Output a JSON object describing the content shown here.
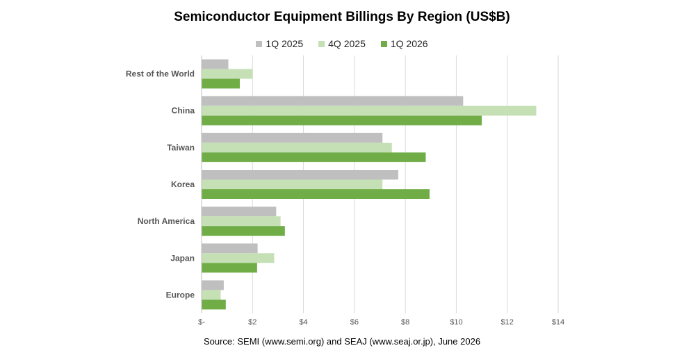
{
  "chart_data": {
    "type": "bar",
    "orientation": "horizontal",
    "title": "Semiconductor Equipment Billings By Region (US$B)",
    "categories": [
      "Rest of the World",
      "China",
      "Taiwan",
      "Korea",
      "North America",
      "Japan",
      "Europe"
    ],
    "series": [
      {
        "name": "1Q 2025",
        "color": "#bfbfbf",
        "values": [
          1.05,
          10.27,
          7.1,
          7.72,
          2.93,
          2.2,
          0.87
        ]
      },
      {
        "name": "4Q 2025",
        "color": "#c5e0b4",
        "values": [
          2.0,
          13.14,
          7.47,
          7.1,
          3.1,
          2.85,
          0.75
        ]
      },
      {
        "name": "1Q 2026",
        "color": "#70ad47",
        "values": [
          1.5,
          11.0,
          8.8,
          8.95,
          3.27,
          2.18,
          0.95
        ]
      }
    ],
    "xlim": [
      0,
      14
    ],
    "xticks": [
      0,
      2,
      4,
      6,
      8,
      10,
      12,
      14
    ],
    "xtick_labels": [
      "$-",
      "$2",
      "$4",
      "$6",
      "$8",
      "$10",
      "$12",
      "$14"
    ],
    "grid": "vertical",
    "legend_position": "top",
    "source": "Source: SEMI (www.semi.org)  and SEAJ (www.seaj.or.jp),  June 2026"
  }
}
